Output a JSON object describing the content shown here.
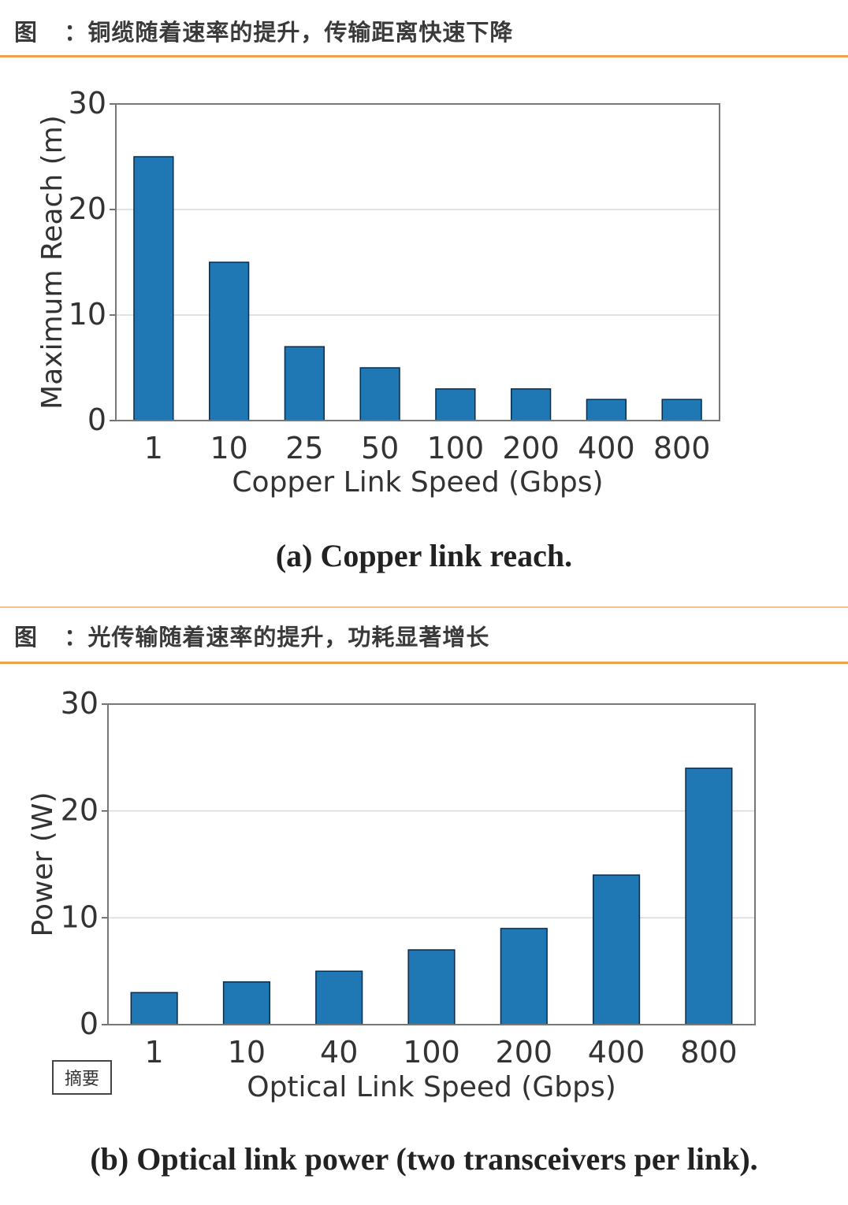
{
  "header_a": {
    "label": "图",
    "colon": "：",
    "title": "铜缆随着速率的提升，传输距离快速下降"
  },
  "header_b": {
    "label": "图",
    "colon": "：",
    "title": "光传输随着速率的提升，功耗显著增长"
  },
  "caption_a": "(a) Copper link reach.",
  "caption_b": "(b) Optical link power (two transceivers per link).",
  "abstract_button": "摘要",
  "colors": {
    "bar": "#1f77b4",
    "bar_edge": "#0b2b4a",
    "rule": "#f0a24a",
    "grid": "#d9d9d9"
  },
  "chart_data": [
    {
      "type": "bar",
      "categories": [
        "1",
        "10",
        "25",
        "50",
        "100",
        "200",
        "400",
        "800"
      ],
      "values": [
        25,
        15,
        7,
        5,
        3,
        3,
        2,
        2
      ],
      "xlabel": "Copper Link Speed (Gbps)",
      "ylabel": "Maximum Reach (m)",
      "ylim": [
        0,
        30
      ],
      "yticks": [
        "0",
        "10",
        "20",
        "30"
      ],
      "grid": true
    },
    {
      "type": "bar",
      "categories": [
        "1",
        "10",
        "40",
        "100",
        "200",
        "400",
        "800"
      ],
      "values": [
        3,
        4,
        5,
        7,
        9,
        14,
        24
      ],
      "xlabel": "Optical Link Speed (Gbps)",
      "ylabel": "Power (W)",
      "ylim": [
        0,
        30
      ],
      "yticks": [
        "0",
        "10",
        "20",
        "30"
      ],
      "grid": true
    }
  ]
}
